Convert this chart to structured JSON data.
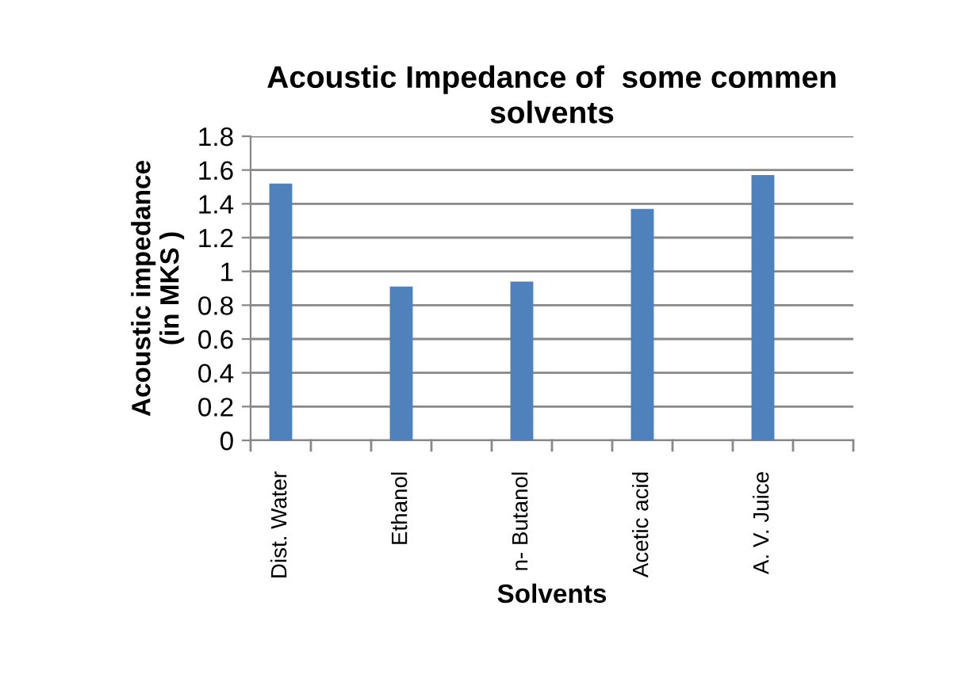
{
  "chart_data": {
    "type": "bar",
    "title": "Acoustic Impedance of  some commen\nsolvents",
    "xlabel": "Solvents",
    "ylabel": "Acoustic impedance\n(in MKS )",
    "categories": [
      "Dist. Water",
      null,
      "Ethanol",
      null,
      "n- Butanol",
      null,
      "Acetic acid",
      null,
      "A. V. Juice",
      null
    ],
    "values": [
      1.52,
      null,
      0.91,
      null,
      0.94,
      null,
      1.37,
      null,
      1.57,
      null
    ],
    "color": "#4f81bd",
    "ylim": [
      0,
      1.8
    ],
    "yticks": [
      0,
      0.2,
      0.4,
      0.6,
      0.8,
      1,
      1.2,
      1.4,
      1.6,
      1.8
    ],
    "grid": "y"
  }
}
